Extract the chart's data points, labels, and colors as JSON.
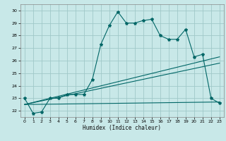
{
  "title": "",
  "xlabel": "Humidex (Indice chaleur)",
  "bg_color": "#c8e8e8",
  "grid_color": "#a0c8c8",
  "line_color": "#006666",
  "xlim": [
    -0.5,
    23.5
  ],
  "ylim": [
    21.5,
    30.5
  ],
  "xticks": [
    0,
    1,
    2,
    3,
    4,
    5,
    6,
    7,
    8,
    9,
    10,
    11,
    12,
    13,
    14,
    15,
    16,
    17,
    18,
    19,
    20,
    21,
    22,
    23
  ],
  "yticks": [
    22,
    23,
    24,
    25,
    26,
    27,
    28,
    29,
    30
  ],
  "series1_x": [
    0,
    1,
    2,
    3,
    4,
    5,
    6,
    7,
    8,
    9,
    10,
    11,
    12,
    13,
    14,
    15,
    16,
    17,
    18,
    19,
    20,
    21,
    22,
    23
  ],
  "series1_y": [
    23.0,
    21.8,
    21.9,
    23.0,
    23.0,
    23.3,
    23.3,
    23.3,
    24.5,
    27.3,
    28.8,
    29.9,
    29.0,
    29.0,
    29.2,
    29.3,
    28.0,
    27.7,
    27.7,
    28.5,
    26.3,
    26.5,
    23.0,
    22.6
  ],
  "series2_x": [
    0,
    23
  ],
  "series2_y": [
    22.5,
    26.3
  ],
  "series3_x": [
    0,
    23
  ],
  "series3_y": [
    22.5,
    25.8
  ],
  "series4_x": [
    0,
    23
  ],
  "series4_y": [
    22.5,
    22.7
  ]
}
